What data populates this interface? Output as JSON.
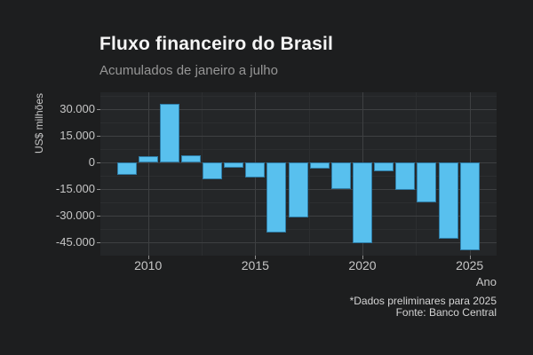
{
  "chart_data": {
    "type": "bar",
    "title": "Fluxo financeiro do Brasil",
    "subtitle": "Acumulados de janeiro a julho",
    "xlabel": "Ano",
    "ylabel": "US$ milhões",
    "categories": [
      2009,
      2010,
      2011,
      2012,
      2013,
      2014,
      2015,
      2016,
      2017,
      2018,
      2019,
      2020,
      2021,
      2022,
      2023,
      2024,
      2025
    ],
    "values": [
      -7000,
      3600,
      33000,
      4200,
      -9200,
      -3000,
      -8300,
      -39300,
      -30800,
      -3200,
      -14700,
      -45200,
      -5000,
      -15500,
      -22500,
      -43000,
      -49300
    ],
    "unit": "US$ milhões",
    "ylim": [
      -52500,
      39500
    ],
    "yticks": [
      {
        "value": 30000,
        "label": "30.000"
      },
      {
        "value": 15000,
        "label": "15.000"
      },
      {
        "value": 0,
        "label": "0"
      },
      {
        "value": -15000,
        "label": "-15.000"
      },
      {
        "value": -30000,
        "label": "-30.000"
      },
      {
        "value": -45000,
        "label": "-45.000"
      }
    ],
    "yticks_minor": [
      37500,
      22500,
      7500,
      -7500,
      -22500,
      -37500
    ],
    "xticks": [
      {
        "value": 2010,
        "label": "2010"
      },
      {
        "value": 2015,
        "label": "2015"
      },
      {
        "value": 2020,
        "label": "2020"
      },
      {
        "value": 2025,
        "label": "2025"
      }
    ],
    "xticks_minor": [
      2012.5,
      2017.5,
      2022.5
    ],
    "grid": "major+minor horizontal and vertical",
    "legend": "none",
    "caption": [
      "*Dados preliminares para 2025",
      "Fonte: Banco Central"
    ]
  },
  "colors": {
    "background": "#1d1e1f",
    "panel": "#242628",
    "grid_major": "#3e4042",
    "grid_minor": "#2c2e30",
    "bar_fill": "#58c0ee",
    "bar_border": "#2f7ca6",
    "title_text": "#f5f5f5",
    "subtitle_text": "#969696",
    "axis_text": "#c6c6c6",
    "caption_text": "#d4d4d4"
  }
}
